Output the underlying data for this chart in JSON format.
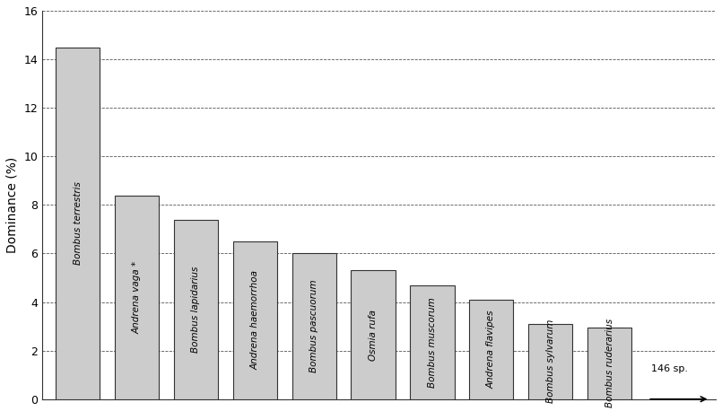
{
  "categories": [
    "Bombus terrestris",
    "Andrena vaga *",
    "Bombus lapidarius",
    "Andrena haemorrhoa",
    "Bombus pascuorum",
    "Osmia rufa",
    "Bombus muscorum",
    "Andrena flavipes",
    "Bombus sylvarum",
    "Bombus ruderarius"
  ],
  "values": [
    14.5,
    8.4,
    7.4,
    6.5,
    6.0,
    5.3,
    4.7,
    4.1,
    3.1,
    2.95
  ],
  "bar_color": "#cccccc",
  "bar_edgecolor": "#333333",
  "ylabel": "Dominance (%)",
  "ylim": [
    0,
    16
  ],
  "yticks": [
    0,
    2,
    4,
    6,
    8,
    10,
    12,
    14,
    16
  ],
  "grid_color": "#555555",
  "annotation_text": "146 sp.",
  "background_color": "#ffffff"
}
